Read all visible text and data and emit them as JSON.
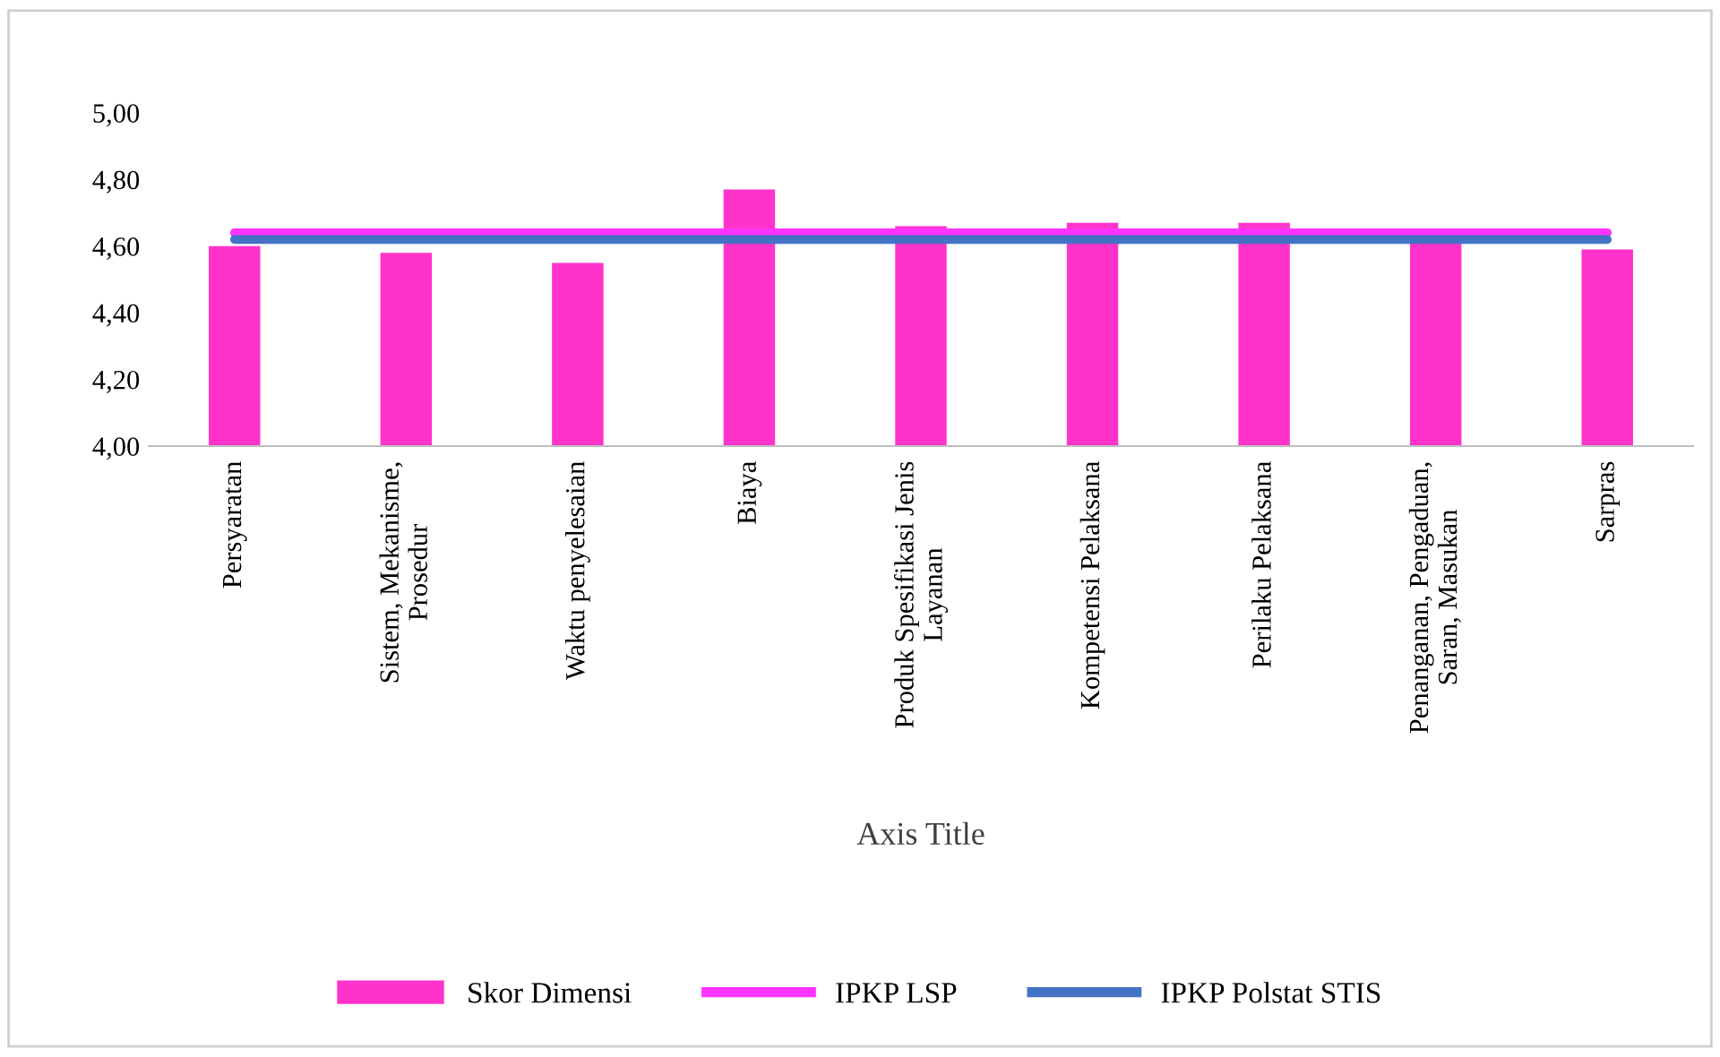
{
  "chart_data": {
    "type": "bar",
    "xlabel": "Axis Title",
    "categories": [
      "Persyaratan",
      "Sistem, Mekanisme,\nProsedur",
      "Waktu penyelesaian",
      "Biaya",
      "Produk Spesifikasi Jenis\nLayanan",
      "Kompetensi Pelaksana",
      "Perilaku Pelaksana",
      "Penanganan, Pengaduan,\nSaran, Masukan",
      "Sarpras"
    ],
    "series": [
      {
        "name": "Skor Dimensi",
        "color": "#ff33cc",
        "values": [
          4.6,
          4.58,
          4.55,
          4.77,
          4.66,
          4.67,
          4.67,
          4.62,
          4.59
        ]
      },
      {
        "name": "IPKP LSP",
        "type": "line",
        "color": "#ff33ff",
        "values": [
          4.64,
          4.64,
          4.64,
          4.64,
          4.64,
          4.64,
          4.64,
          4.64,
          4.64
        ]
      },
      {
        "name": "IPKP Polstat STIS",
        "type": "line",
        "color": "#4472c4",
        "values": [
          4.62,
          4.62,
          4.62,
          4.62,
          4.62,
          4.62,
          4.62,
          4.62,
          4.62
        ]
      }
    ],
    "ylim": [
      4.0,
      5.0
    ],
    "yticks": [
      {
        "value": 4.0,
        "label": "4,00"
      },
      {
        "value": 4.2,
        "label": "4,20"
      },
      {
        "value": 4.4,
        "label": "4,40"
      },
      {
        "value": 4.6,
        "label": "4,60"
      },
      {
        "value": 4.8,
        "label": "4,80"
      },
      {
        "value": 5.0,
        "label": "5,00"
      }
    ],
    "grid": false,
    "legend": "bottom"
  }
}
